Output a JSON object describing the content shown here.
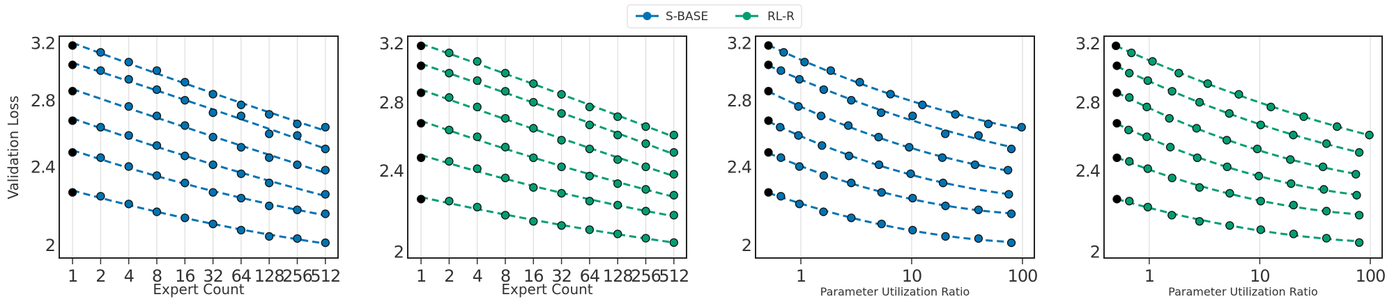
{
  "legend": {
    "placement": "top-center",
    "items": [
      {
        "label": "S-BASE",
        "color": "#0173b2"
      },
      {
        "label": "RL-R",
        "color": "#029e73"
      }
    ]
  },
  "chart_data": [
    {
      "type": "scatter",
      "method": "S-BASE",
      "color": "#0173b2",
      "first_point_color": "#000000",
      "xlabel": "Expert Count",
      "ylabel": "Validation Loss",
      "xscale": "log2",
      "yscale": "log",
      "xlim": [
        0.72,
        700
      ],
      "ylim": [
        1.94,
        3.25
      ],
      "xticks": [
        1,
        2,
        4,
        8,
        16,
        32,
        64,
        128,
        256,
        512
      ],
      "xtick_labels": [
        "1",
        "2",
        "4",
        "8",
        "16",
        "32",
        "64",
        "128",
        "256",
        "512"
      ],
      "yticks": [
        2,
        2.4,
        2.8,
        3.2
      ],
      "ytick_labels": [
        "2",
        "2.4",
        "2.8",
        "3.2"
      ],
      "grid": "vertical",
      "fit_line": "dashed",
      "series": [
        {
          "x": [
            1,
            2,
            4,
            8,
            16,
            32,
            64,
            128,
            256,
            512
          ],
          "y": [
            3.18,
            3.13,
            3.06,
            3.0,
            2.92,
            2.84,
            2.77,
            2.71,
            2.65,
            2.63
          ]
        },
        {
          "x": [
            1,
            2,
            4,
            8,
            16,
            32,
            64,
            128,
            256,
            512
          ],
          "y": [
            3.04,
            3.0,
            2.94,
            2.87,
            2.8,
            2.72,
            2.7,
            2.59,
            2.58,
            2.5
          ]
        },
        {
          "x": [
            1,
            4,
            8,
            16,
            32,
            64,
            128,
            256,
            512
          ],
          "y": [
            2.86,
            2.76,
            2.7,
            2.64,
            2.57,
            2.51,
            2.45,
            2.41,
            2.38
          ]
        },
        {
          "x": [
            1,
            2,
            4,
            8,
            16,
            32,
            64,
            128,
            512
          ],
          "y": [
            2.67,
            2.63,
            2.58,
            2.52,
            2.46,
            2.41,
            2.36,
            2.31,
            2.25
          ]
        },
        {
          "x": [
            1,
            2,
            4,
            8,
            16,
            32,
            64,
            128,
            256,
            512
          ],
          "y": [
            2.48,
            2.45,
            2.4,
            2.35,
            2.31,
            2.26,
            2.23,
            2.19,
            2.17,
            2.15
          ]
        },
        {
          "x": [
            1,
            2,
            4,
            8,
            16,
            32,
            64,
            128,
            256,
            512
          ],
          "y": [
            2.26,
            2.24,
            2.2,
            2.16,
            2.13,
            2.1,
            2.07,
            2.04,
            2.03,
            2.01
          ]
        }
      ]
    },
    {
      "type": "scatter",
      "method": "RL-R",
      "color": "#029e73",
      "first_point_color": "#000000",
      "xlabel": "Expert Count",
      "ylabel": "",
      "xscale": "log2",
      "yscale": "log",
      "xlim": [
        0.72,
        700
      ],
      "ylim": [
        1.97,
        3.25
      ],
      "xticks": [
        1,
        2,
        4,
        8,
        16,
        32,
        64,
        128,
        256,
        512
      ],
      "xtick_labels": [
        "1",
        "2",
        "4",
        "8",
        "16",
        "32",
        "64",
        "128",
        "256",
        "512"
      ],
      "yticks": [
        2,
        2.4,
        2.8,
        3.2
      ],
      "ytick_labels": [
        "2",
        "2.4",
        "2.8",
        "3.2"
      ],
      "grid": "vertical",
      "fit_line": "dashed",
      "series": [
        {
          "x": [
            1,
            2,
            4,
            8,
            16,
            32,
            64,
            128,
            256,
            512
          ],
          "y": [
            3.18,
            3.13,
            3.07,
            2.99,
            2.92,
            2.85,
            2.77,
            2.71,
            2.65,
            2.6
          ]
        },
        {
          "x": [
            1,
            2,
            4,
            8,
            16,
            32,
            64,
            128,
            256,
            512
          ],
          "y": [
            3.04,
            2.99,
            2.94,
            2.87,
            2.8,
            2.73,
            2.66,
            2.6,
            2.55,
            2.5
          ]
        },
        {
          "x": [
            1,
            2,
            4,
            8,
            16,
            32,
            64,
            128,
            256,
            512
          ],
          "y": [
            2.86,
            2.83,
            2.77,
            2.7,
            2.64,
            2.57,
            2.52,
            2.46,
            2.42,
            2.38
          ]
        },
        {
          "x": [
            1,
            2,
            4,
            8,
            16,
            32,
            64,
            128,
            256,
            512
          ],
          "y": [
            2.67,
            2.63,
            2.59,
            2.53,
            2.47,
            2.42,
            2.37,
            2.33,
            2.3,
            2.27
          ]
        },
        {
          "x": [
            1,
            2,
            4,
            8,
            16,
            32,
            64,
            128,
            256,
            512
          ],
          "y": [
            2.47,
            2.45,
            2.41,
            2.36,
            2.31,
            2.28,
            2.24,
            2.22,
            2.19,
            2.17
          ]
        },
        {
          "x": [
            1,
            2,
            4,
            8,
            16,
            32,
            64,
            128,
            256,
            512
          ],
          "y": [
            2.25,
            2.24,
            2.21,
            2.17,
            2.14,
            2.12,
            2.1,
            2.08,
            2.06,
            2.04
          ]
        }
      ]
    },
    {
      "type": "scatter",
      "method": "S-BASE",
      "color": "#0173b2",
      "first_point_color": "#000000",
      "xlabel": "Parameter Utilization Ratio",
      "ylabel": "",
      "xscale": "log10",
      "yscale": "log",
      "xlim": [
        0.39,
        128
      ],
      "ylim": [
        1.94,
        3.25
      ],
      "xticks": [
        1,
        10,
        100
      ],
      "xtick_labels": [
        "1",
        "10",
        "100"
      ],
      "yticks": [
        2,
        2.4,
        2.8,
        3.2
      ],
      "ytick_labels": [
        "2",
        "2.4",
        "2.8",
        "3.2"
      ],
      "grid": "vertical",
      "fit_line": "dashed",
      "series": [
        {
          "x": [
            0.51,
            0.7,
            1.08,
            1.86,
            3.4,
            6.44,
            12.5,
            24.8,
            49.2,
            98.3
          ],
          "y": [
            3.18,
            3.13,
            3.06,
            3.0,
            2.92,
            2.84,
            2.77,
            2.71,
            2.65,
            2.63
          ]
        },
        {
          "x": [
            0.51,
            0.66,
            0.97,
            1.61,
            2.85,
            5.3,
            10.2,
            20.1,
            40.1,
            79.4
          ],
          "y": [
            3.04,
            3.0,
            2.94,
            2.87,
            2.8,
            2.72,
            2.7,
            2.59,
            2.58,
            2.5
          ]
        },
        {
          "x": [
            0.51,
            0.95,
            1.52,
            2.68,
            5.03,
            9.5,
            18.9,
            37.3,
            74
          ],
          "y": [
            2.86,
            2.76,
            2.7,
            2.64,
            2.57,
            2.51,
            2.45,
            2.41,
            2.38
          ]
        },
        {
          "x": [
            0.51,
            0.65,
            0.95,
            1.55,
            2.72,
            5.07,
            9.8,
            19.2,
            75.3
          ],
          "y": [
            2.67,
            2.63,
            2.58,
            2.52,
            2.46,
            2.41,
            2.36,
            2.31,
            2.25
          ]
        },
        {
          "x": [
            0.51,
            0.66,
            0.97,
            1.61,
            2.85,
            5.35,
            10.2,
            20.2,
            40.1,
            79.4
          ],
          "y": [
            2.48,
            2.45,
            2.4,
            2.35,
            2.31,
            2.26,
            2.23,
            2.19,
            2.17,
            2.15
          ]
        },
        {
          "x": [
            0.51,
            0.66,
            0.97,
            1.6,
            2.85,
            5.35,
            10.2,
            20.2,
            40.1,
            79.4
          ],
          "y": [
            2.26,
            2.24,
            2.2,
            2.16,
            2.13,
            2.1,
            2.07,
            2.04,
            2.03,
            2.01
          ]
        }
      ]
    },
    {
      "type": "scatter",
      "method": "RL-R",
      "color": "#029e73",
      "first_point_color": "#000000",
      "xlabel": "Parameter Utilization Ratio",
      "ylabel": "",
      "xscale": "log10",
      "yscale": "log",
      "xlim": [
        0.39,
        128
      ],
      "ylim": [
        1.97,
        3.25
      ],
      "xticks": [
        1,
        10,
        100
      ],
      "xtick_labels": [
        "1",
        "10",
        "100"
      ],
      "yticks": [
        2,
        2.4,
        2.8,
        3.2
      ],
      "ytick_labels": [
        "2",
        "2.4",
        "2.8",
        "3.2"
      ],
      "grid": "vertical",
      "fit_line": "dashed",
      "series": [
        {
          "x": [
            0.5,
            0.69,
            1.07,
            1.85,
            3.38,
            6.47,
            12.6,
            25,
            50,
            98
          ],
          "y": [
            3.18,
            3.13,
            3.07,
            2.99,
            2.92,
            2.85,
            2.77,
            2.71,
            2.65,
            2.6
          ]
        },
        {
          "x": [
            0.51,
            0.66,
            0.97,
            1.61,
            2.85,
            5.3,
            10.2,
            20.1,
            40.1,
            79.4
          ],
          "y": [
            3.04,
            2.99,
            2.94,
            2.87,
            2.8,
            2.73,
            2.66,
            2.6,
            2.55,
            2.5
          ]
        },
        {
          "x": [
            0.51,
            0.66,
            0.95,
            1.52,
            2.68,
            5.03,
            9.5,
            18.9,
            37.3,
            74
          ],
          "y": [
            2.86,
            2.83,
            2.77,
            2.7,
            2.64,
            2.57,
            2.52,
            2.46,
            2.42,
            2.38
          ]
        },
        {
          "x": [
            0.51,
            0.65,
            0.95,
            1.55,
            2.72,
            5.07,
            9.8,
            19.2,
            38,
            75.3
          ],
          "y": [
            2.67,
            2.63,
            2.59,
            2.53,
            2.47,
            2.42,
            2.37,
            2.33,
            2.3,
            2.27
          ]
        },
        {
          "x": [
            0.51,
            0.66,
            0.97,
            1.61,
            2.85,
            5.35,
            10.2,
            20.2,
            40.1,
            79.4
          ],
          "y": [
            2.47,
            2.45,
            2.41,
            2.36,
            2.31,
            2.28,
            2.24,
            2.22,
            2.19,
            2.17
          ]
        },
        {
          "x": [
            0.51,
            0.66,
            0.97,
            1.6,
            2.85,
            5.35,
            10.2,
            20.2,
            40.1,
            79.4
          ],
          "y": [
            2.25,
            2.24,
            2.21,
            2.17,
            2.14,
            2.12,
            2.1,
            2.08,
            2.06,
            2.04
          ]
        }
      ]
    }
  ]
}
